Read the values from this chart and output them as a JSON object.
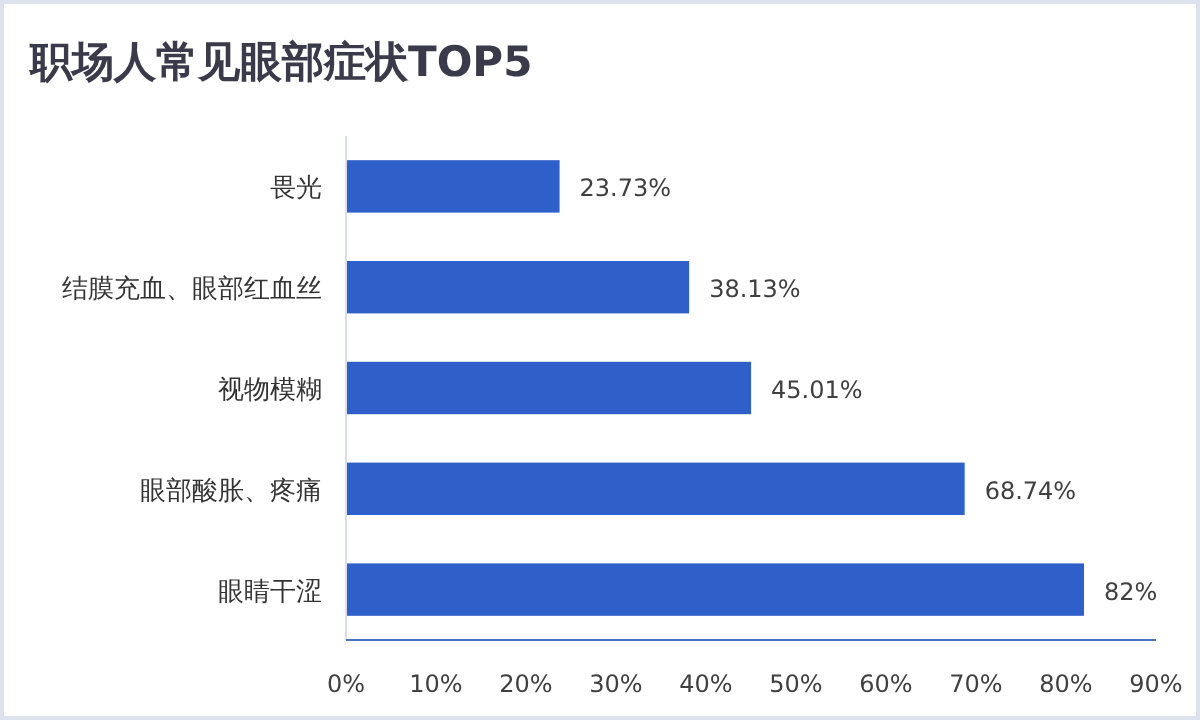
{
  "chart_data": {
    "type": "bar",
    "orientation": "horizontal",
    "title": "职场人常见眼部症状TOP5",
    "categories": [
      "畏光",
      "结膜充血、眼部红血丝",
      "视物模糊",
      "眼部酸胀、疼痛",
      "眼睛干涩"
    ],
    "values": [
      23.73,
      38.13,
      45.01,
      68.74,
      82
    ],
    "value_labels": [
      "23.73%",
      "38.13%",
      "45.01%",
      "68.74%",
      "82%"
    ],
    "color": "#2f5fc9",
    "xlim": [
      0,
      90
    ],
    "xticks": [
      {
        "value": 0,
        "label": "0%"
      },
      {
        "value": 10,
        "label": "10%"
      },
      {
        "value": 20,
        "label": "20%"
      },
      {
        "value": 30,
        "label": "30%"
      },
      {
        "value": 40,
        "label": "40%"
      },
      {
        "value": 50,
        "label": "50%"
      },
      {
        "value": 60,
        "label": "60%"
      },
      {
        "value": 70,
        "label": "70%"
      },
      {
        "value": 80,
        "label": "80%"
      },
      {
        "value": 90,
        "label": "90%"
      }
    ],
    "grid": false
  }
}
